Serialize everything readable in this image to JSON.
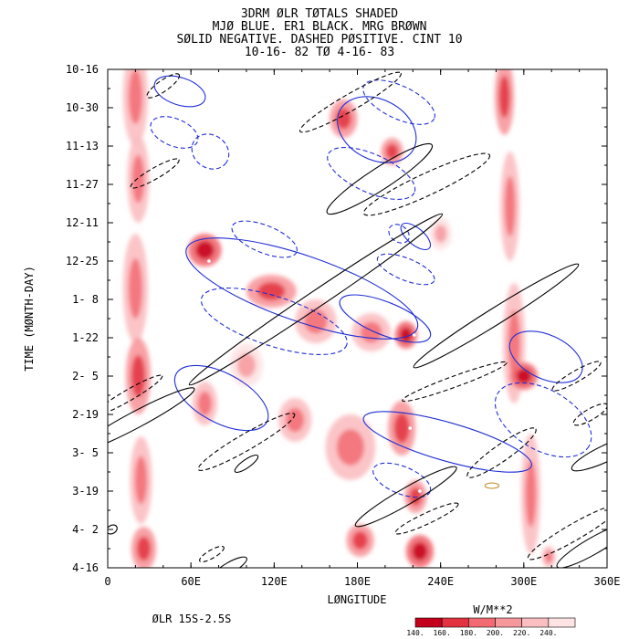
{
  "chart_data": {
    "type": "heatmap",
    "title_lines": [
      "3DRM ØLR TØTALS SHADED",
      "MJØ BLUE. ER1 BLACK. MRG BRØWN",
      "SØLID NEGATIVE. DASHED PØSITIVE. CINT 10",
      "10-16-  82 TØ  4-16-  83"
    ],
    "xlabel": "LØNGITUDE",
    "ylabel": "TIME (MØNTH-DAY)",
    "xlim": [
      0,
      360
    ],
    "x_ticks": [
      "0",
      "60E",
      "120E",
      "180E",
      "240E",
      "300E",
      "360E"
    ],
    "x_tick_values": [
      0,
      60,
      120,
      180,
      240,
      300,
      360
    ],
    "y_ticks": [
      "10-16",
      "10-30",
      "11-13",
      "11-27",
      "12-11",
      "12-25",
      "1- 8",
      "1-22",
      "2- 5",
      "2-19",
      "3- 5",
      "3-19",
      "4- 2",
      "4-16"
    ],
    "y_tick_values": [
      0,
      14,
      28,
      42,
      56,
      70,
      84,
      98,
      112,
      126,
      140,
      154,
      168,
      182
    ],
    "ylim": [
      0,
      182
    ],
    "region_label": "ØLR 15S-2.5S",
    "colorbar": {
      "units": "W/M**2",
      "levels": [
        "140.",
        "160.",
        "180.",
        "200.",
        "220.",
        "240."
      ],
      "colors": [
        "#c4001d",
        "#e33240",
        "#f26b73",
        "#f7989c",
        "#fbbfc2",
        "#fde3e4"
      ]
    },
    "ellipse_colors": {
      "mjo": "#1f2fd6",
      "er1": "#000000",
      "mrg": "#c08a2a"
    },
    "shaded_blobs": [
      {
        "x": 20,
        "y": 10,
        "rx": 9,
        "ry": 18,
        "level": 2
      },
      {
        "x": 22,
        "y": 40,
        "rx": 8,
        "ry": 16,
        "level": 2
      },
      {
        "x": 20,
        "y": 80,
        "rx": 9,
        "ry": 20,
        "level": 2
      },
      {
        "x": 22,
        "y": 112,
        "rx": 9,
        "ry": 14,
        "level": 1
      },
      {
        "x": 24,
        "y": 150,
        "rx": 8,
        "ry": 16,
        "level": 2
      },
      {
        "x": 26,
        "y": 175,
        "rx": 9,
        "ry": 8,
        "level": 1
      },
      {
        "x": 70,
        "y": 66,
        "rx": 12,
        "ry": 6,
        "level": 0
      },
      {
        "x": 118,
        "y": 81,
        "rx": 18,
        "ry": 6,
        "level": 1
      },
      {
        "x": 150,
        "y": 92,
        "rx": 15,
        "ry": 8,
        "level": 2
      },
      {
        "x": 190,
        "y": 96,
        "rx": 14,
        "ry": 7,
        "level": 2
      },
      {
        "x": 215,
        "y": 97,
        "rx": 8,
        "ry": 5,
        "level": 0
      },
      {
        "x": 170,
        "y": 18,
        "rx": 10,
        "ry": 7,
        "level": 1
      },
      {
        "x": 205,
        "y": 30,
        "rx": 8,
        "ry": 5,
        "level": 1
      },
      {
        "x": 70,
        "y": 122,
        "rx": 9,
        "ry": 8,
        "level": 2
      },
      {
        "x": 135,
        "y": 128,
        "rx": 12,
        "ry": 8,
        "level": 2
      },
      {
        "x": 175,
        "y": 138,
        "rx": 18,
        "ry": 12,
        "level": 2
      },
      {
        "x": 212,
        "y": 131,
        "rx": 10,
        "ry": 10,
        "level": 1
      },
      {
        "x": 222,
        "y": 156,
        "rx": 8,
        "ry": 6,
        "level": 1
      },
      {
        "x": 225,
        "y": 176,
        "rx": 10,
        "ry": 6,
        "level": 0
      },
      {
        "x": 182,
        "y": 172,
        "rx": 10,
        "ry": 6,
        "level": 1
      },
      {
        "x": 286,
        "y": 10,
        "rx": 7,
        "ry": 14,
        "level": 1
      },
      {
        "x": 290,
        "y": 50,
        "rx": 7,
        "ry": 20,
        "level": 2
      },
      {
        "x": 293,
        "y": 100,
        "rx": 8,
        "ry": 22,
        "level": 2
      },
      {
        "x": 300,
        "y": 112,
        "rx": 10,
        "ry": 5,
        "level": 0
      },
      {
        "x": 305,
        "y": 155,
        "rx": 7,
        "ry": 22,
        "level": 2
      },
      {
        "x": 318,
        "y": 178,
        "rx": 5,
        "ry": 4,
        "level": 2
      },
      {
        "x": 100,
        "y": 108,
        "rx": 12,
        "ry": 8,
        "level": 3
      },
      {
        "x": 240,
        "y": 60,
        "rx": 8,
        "ry": 6,
        "level": 3
      }
    ],
    "ellipses": [
      {
        "type": "mjo",
        "dashed": false,
        "cx": 52,
        "cy": 8,
        "rx": 19,
        "ry": 5,
        "rot": 18
      },
      {
        "type": "mjo",
        "dashed": true,
        "cx": 210,
        "cy": 12,
        "rx": 28,
        "ry": 6,
        "rot": 25
      },
      {
        "type": "mjo",
        "dashed": false,
        "cx": 194,
        "cy": 22,
        "rx": 30,
        "ry": 11,
        "rot": 28
      },
      {
        "type": "mjo",
        "dashed": true,
        "cx": 48,
        "cy": 23,
        "rx": 18,
        "ry": 5,
        "rot": 22
      },
      {
        "type": "mjo",
        "dashed": true,
        "cx": 190,
        "cy": 38,
        "rx": 34,
        "ry": 7,
        "rot": 24
      },
      {
        "type": "mjo",
        "dashed": true,
        "cx": 113,
        "cy": 62,
        "rx": 25,
        "ry": 5,
        "rot": 22
      },
      {
        "type": "mjo",
        "dashed": true,
        "cx": 210,
        "cy": 60,
        "rx": 8,
        "ry": 3,
        "rot": 35
      },
      {
        "type": "mjo",
        "dashed": false,
        "cx": 140,
        "cy": 80,
        "rx": 88,
        "ry": 12,
        "rot": 19
      },
      {
        "type": "mjo",
        "dashed": true,
        "cx": 215,
        "cy": 73,
        "rx": 22,
        "ry": 4,
        "rot": 22
      },
      {
        "type": "mjo",
        "dashed": false,
        "cx": 222,
        "cy": 61,
        "rx": 13,
        "ry": 3,
        "rot": 40
      },
      {
        "type": "mjo",
        "dashed": true,
        "cx": 120,
        "cy": 92,
        "rx": 55,
        "ry": 9,
        "rot": 18
      },
      {
        "type": "mjo",
        "dashed": false,
        "cx": 200,
        "cy": 91,
        "rx": 35,
        "ry": 6,
        "rot": 22
      },
      {
        "type": "mjo",
        "dashed": false,
        "cx": 316,
        "cy": 105,
        "rx": 28,
        "ry": 8,
        "rot": 25
      },
      {
        "type": "mjo",
        "dashed": false,
        "cx": 82,
        "cy": 120,
        "rx": 37,
        "ry": 9,
        "rot": 28
      },
      {
        "type": "mjo",
        "dashed": true,
        "cx": 314,
        "cy": 128,
        "rx": 38,
        "ry": 11,
        "rot": 30
      },
      {
        "type": "mjo",
        "dashed": false,
        "cx": 245,
        "cy": 136,
        "rx": 63,
        "ry": 7,
        "rot": 16
      },
      {
        "type": "mjo",
        "dashed": true,
        "cx": 212,
        "cy": 150,
        "rx": 22,
        "ry": 5,
        "rot": 22
      },
      {
        "type": "mjo",
        "dashed": true,
        "cx": 74,
        "cy": 30,
        "rx": 14,
        "ry": 6,
        "rot": 35
      },
      {
        "type": "er1",
        "dashed": true,
        "cx": 40,
        "cy": 6,
        "rx": 14,
        "ry": 2,
        "rot": -35
      },
      {
        "type": "er1",
        "dashed": true,
        "cx": 175,
        "cy": 12,
        "rx": 42,
        "ry": 3,
        "rot": -30
      },
      {
        "type": "er1",
        "dashed": false,
        "cx": 196,
        "cy": 40,
        "rx": 45,
        "ry": 4,
        "rot": -33
      },
      {
        "type": "er1",
        "dashed": true,
        "cx": 230,
        "cy": 42,
        "rx": 50,
        "ry": 4,
        "rot": -25
      },
      {
        "type": "er1",
        "dashed": true,
        "cx": 34,
        "cy": 38,
        "rx": 20,
        "ry": 2,
        "rot": -30
      },
      {
        "type": "er1",
        "dashed": false,
        "cx": 150,
        "cy": 84,
        "rx": 110,
        "ry": 3,
        "rot": -34
      },
      {
        "type": "er1",
        "dashed": false,
        "cx": 280,
        "cy": 90,
        "rx": 70,
        "ry": 3,
        "rot": -32
      },
      {
        "type": "er1",
        "dashed": false,
        "cx": 20,
        "cy": 128,
        "rx": 48,
        "ry": 3,
        "rot": -28
      },
      {
        "type": "er1",
        "dashed": true,
        "cx": 15,
        "cy": 119,
        "rx": 28,
        "ry": 2,
        "rot": -30
      },
      {
        "type": "er1",
        "dashed": true,
        "cx": 100,
        "cy": 136,
        "rx": 40,
        "ry": 3,
        "rot": -30
      },
      {
        "type": "er1",
        "dashed": true,
        "cx": 250,
        "cy": 114,
        "rx": 40,
        "ry": 2,
        "rot": -20
      },
      {
        "type": "er1",
        "dashed": true,
        "cx": 338,
        "cy": 112,
        "rx": 20,
        "ry": 2,
        "rot": -30
      },
      {
        "type": "er1",
        "dashed": true,
        "cx": 284,
        "cy": 140,
        "rx": 30,
        "ry": 3,
        "rot": -35
      },
      {
        "type": "er1",
        "dashed": false,
        "cx": 360,
        "cy": 140,
        "rx": 28,
        "ry": 3,
        "rot": -25
      },
      {
        "type": "er1",
        "dashed": false,
        "cx": 215,
        "cy": 156,
        "rx": 42,
        "ry": 3,
        "rot": -30
      },
      {
        "type": "er1",
        "dashed": true,
        "cx": 230,
        "cy": 164,
        "rx": 25,
        "ry": 2,
        "rot": -25
      },
      {
        "type": "er1",
        "dashed": true,
        "cx": 336,
        "cy": 169,
        "rx": 38,
        "ry": 3,
        "rot": -30
      },
      {
        "type": "er1",
        "dashed": false,
        "cx": 350,
        "cy": 174,
        "rx": 30,
        "ry": 3,
        "rot": -30
      },
      {
        "type": "er1",
        "dashed": true,
        "cx": 75,
        "cy": 177,
        "rx": 10,
        "ry": 1.5,
        "rot": -30
      },
      {
        "type": "er1",
        "dashed": false,
        "cx": 88,
        "cy": 182,
        "rx": 14,
        "ry": 2,
        "rot": -30
      },
      {
        "type": "er1",
        "dashed": false,
        "cx": 100,
        "cy": 144,
        "rx": 10,
        "ry": 1.5,
        "rot": -35
      },
      {
        "type": "er1",
        "dashed": true,
        "cx": 348,
        "cy": 126,
        "rx": 14,
        "ry": 2,
        "rot": -30
      },
      {
        "type": "er1",
        "dashed": false,
        "cx": 3,
        "cy": 168,
        "rx": 4,
        "ry": 1.5,
        "rot": -30
      },
      {
        "type": "mrg",
        "dashed": false,
        "cx": 277,
        "cy": 152,
        "rx": 5,
        "ry": 1,
        "rot": 0
      }
    ],
    "white_markers": [
      {
        "x": 73,
        "y": 70
      },
      {
        "x": 221,
        "y": 97
      },
      {
        "x": 218,
        "y": 131
      },
      {
        "x": 225,
        "y": 154
      }
    ]
  }
}
